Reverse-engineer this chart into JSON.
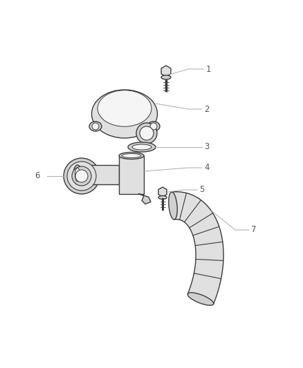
{
  "bg_color": "#ffffff",
  "lc": "#3a3a3a",
  "lc_light": "#aaaaaa",
  "figsize": [
    4.38,
    5.33
  ],
  "dpi": 100,
  "lw_main": 1.0,
  "lw_label": 0.7,
  "label_fontsize": 8.5,
  "label_color": "#555555",
  "fc_part": "#e0e0e0",
  "fc_part2": "#d0d0d0",
  "fc_white": "#f5f5f5"
}
